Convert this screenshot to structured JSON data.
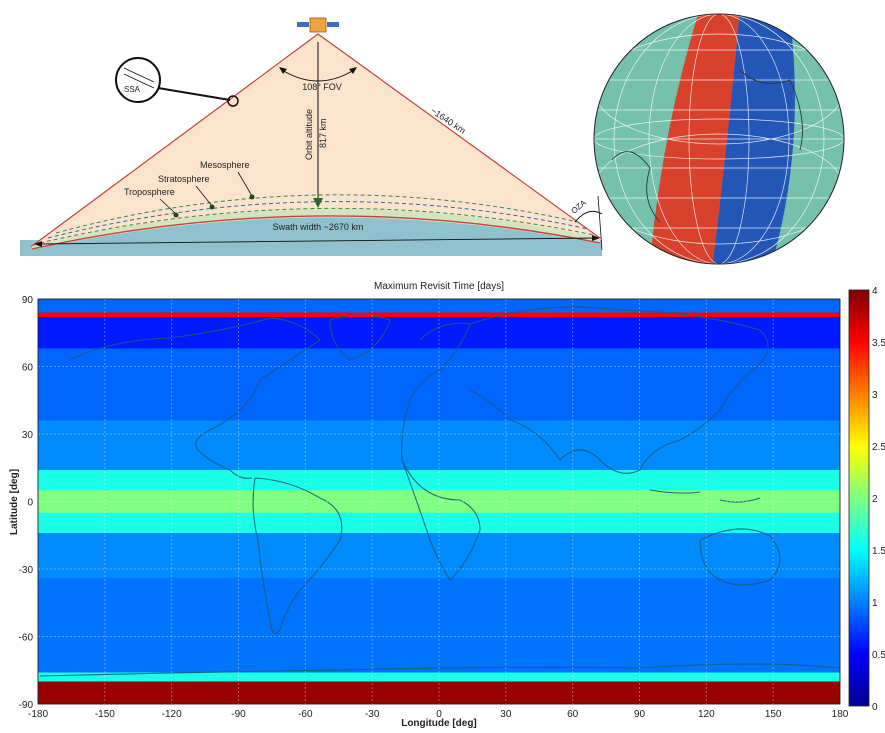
{
  "diagram": {
    "ssa_label": "SSA",
    "fov_label": "108° FOV",
    "orbit_altitude_label": "Orbit altitude",
    "orbit_altitude_value": "817 km",
    "slant_range_label": "~1640 km",
    "mesosphere_label": "Mesosphere",
    "stratosphere_label": "Stratosphere",
    "troposphere_label": "Troposphere",
    "swath_label": "Swath width ~2670 km",
    "oza_label": "OZA",
    "colors": {
      "fov_fill": "#fbe3cc",
      "ground": "#8fc1cf",
      "swath_red": "#d8412c",
      "swath_blue": "#2456b8",
      "globe_base": "#7ecab3"
    }
  },
  "map": {
    "title": "Maximum Revisit Time [days]",
    "xlabel": "Longitude [deg]",
    "ylabel": "Latitude [deg]",
    "x_ticks": [
      "-180",
      "-150",
      "-120",
      "-90",
      "-60",
      "-30",
      "0",
      "30",
      "60",
      "90",
      "120",
      "150",
      "180"
    ],
    "y_ticks": [
      "90",
      "60",
      "30",
      "0",
      "-30",
      "-60",
      "-90"
    ],
    "colorbar_ticks": [
      "4",
      "3.5",
      "3",
      "2.5",
      "2",
      "1.5",
      "1",
      "0.5",
      "0"
    ],
    "colormap": "jet"
  },
  "chart_data": {
    "type": "heatmap",
    "title": "Maximum Revisit Time [days]",
    "xlabel": "Longitude [deg]",
    "ylabel": "Latitude [deg]",
    "xlim": [
      -180,
      180
    ],
    "ylim": [
      -90,
      90
    ],
    "zlim": [
      0,
      4
    ],
    "bands": [
      {
        "lat": [
          84,
          90
        ],
        "value": 0.9
      },
      {
        "lat": [
          82,
          84
        ],
        "value": 3.5
      },
      {
        "lat": [
          68,
          82
        ],
        "value": 0.6
      },
      {
        "lat": [
          36,
          68
        ],
        "value": 0.9
      },
      {
        "lat": [
          14,
          36
        ],
        "value": 1.05
      },
      {
        "lat": [
          5,
          14
        ],
        "value": 1.6
      },
      {
        "lat": [
          -5,
          5
        ],
        "value": 2.0
      },
      {
        "lat": [
          -14,
          -5
        ],
        "value": 1.6
      },
      {
        "lat": [
          -34,
          -14
        ],
        "value": 1.05
      },
      {
        "lat": [
          -76,
          -34
        ],
        "value": 0.95
      },
      {
        "lat": [
          -80,
          -76
        ],
        "value": 1.6
      },
      {
        "lat": [
          -90,
          -80
        ],
        "value": 3.9
      }
    ]
  }
}
